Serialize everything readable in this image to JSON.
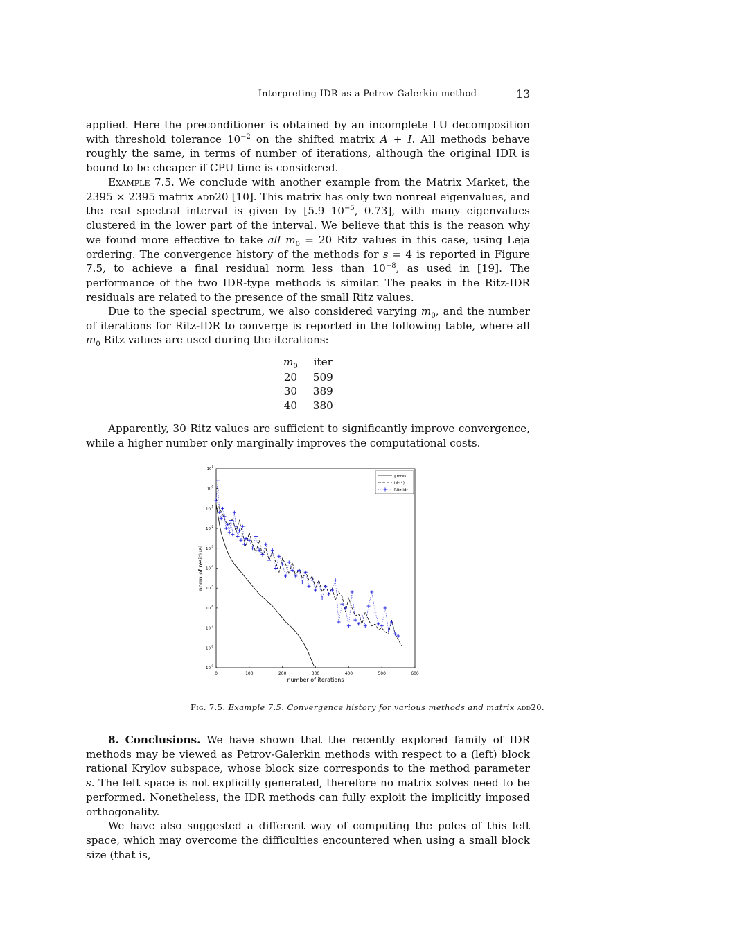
{
  "header": {
    "title": "Interpreting IDR as a Petrov-Galerkin method",
    "page_number": "13"
  },
  "para1": {
    "a": "applied. Here the preconditioner is obtained by an incomplete LU decomposition with threshold tolerance 10",
    "a_sup": "−2",
    "b": " on the shifted matrix ",
    "b_math": "A + I",
    "c": ". All methods behave roughly the same, in terms of number of iterations, although the original IDR is bound to be cheaper if CPU time is considered."
  },
  "para2": {
    "label": "Example 7.5.",
    "a": " We conclude with another example from the Matrix Market, the 2395 × 2395 matrix ",
    "matrix": "add",
    "matrix_num": "20 [10]. This matrix has only two nonreal eigenvalues, and the real spectral interval is given by [5.9 10",
    "sup1": "−5",
    "b": ", 0.73], with many eigenvalues clustered in the lower part of the interval. We believe that this is the reason why we found more effective to take ",
    "all": "all",
    "c": " m",
    "c_sub": "0",
    "d": " = 20 Ritz values in this case, using Leja ordering. The convergence history of the methods for ",
    "s": "s",
    "e": " = 4 is reported in Figure 7.5, to achieve a final residual norm less than 10",
    "sup2": "−8",
    "f": ", as used in [19]. The performance of the two IDR-type methods is similar. The peaks in the Ritz-IDR residuals are related to the presence of the small Ritz values."
  },
  "para3": {
    "a": "Due to the special spectrum, we also considered varying ",
    "m": "m",
    "sub": "0",
    "b": ", and the number of iterations for Ritz-IDR to converge is reported in the following table, where all ",
    "c": " Ritz values are used during the iterations:"
  },
  "table": {
    "headers": [
      "m",
      "iter"
    ],
    "header_sub": "0",
    "rows": [
      [
        "20",
        "509"
      ],
      [
        "30",
        "389"
      ],
      [
        "40",
        "380"
      ]
    ]
  },
  "para4": "Apparently, 30 Ritz values are sufficient to significantly improve convergence, while a higher number only marginally improves the computational costs.",
  "chart_data": {
    "type": "line",
    "xlabel": "number of iterations",
    "ylabel": "norm of residual",
    "xlim": [
      0,
      600
    ],
    "ylim": [
      -9,
      1
    ],
    "y_scale": "log",
    "xticks": [
      "0",
      "100",
      "200",
      "300",
      "400",
      "500",
      "600"
    ],
    "yticks": [
      "10^1",
      "10^0",
      "10^-1",
      "10^-2",
      "10^-3",
      "10^-4",
      "10^-5",
      "10^-6",
      "10^-7",
      "10^-8",
      "10^-9"
    ],
    "legend_position": "top-right",
    "series": [
      {
        "name": "gmres",
        "style": "solid",
        "color": "#000000",
        "x": [
          0,
          5,
          10,
          15,
          20,
          30,
          40,
          55,
          70,
          90,
          110,
          130,
          150,
          170,
          190,
          210,
          230,
          250,
          265,
          275,
          285,
          295
        ],
        "y": [
          -0.8,
          -1.3,
          -1.8,
          -2.2,
          -2.5,
          -3.0,
          -3.4,
          -3.8,
          -4.1,
          -4.5,
          -4.9,
          -5.3,
          -5.6,
          -5.9,
          -6.3,
          -6.7,
          -7.0,
          -7.4,
          -7.8,
          -8.1,
          -8.5,
          -8.9
        ]
      },
      {
        "name": "idr(4)",
        "style": "dashed",
        "color": "#000000",
        "x": [
          0,
          10,
          20,
          30,
          40,
          50,
          60,
          70,
          80,
          90,
          100,
          110,
          120,
          130,
          140,
          150,
          160,
          170,
          180,
          190,
          200,
          210,
          220,
          230,
          240,
          250,
          260,
          270,
          280,
          290,
          300,
          310,
          320,
          330,
          340,
          350,
          360,
          370,
          380,
          390,
          400,
          410,
          420,
          430,
          440,
          450,
          460,
          470,
          480,
          490,
          500,
          510,
          520,
          530,
          540,
          550,
          560
        ],
        "y": [
          -0.5,
          -1.0,
          -1.3,
          -1.7,
          -1.8,
          -1.5,
          -2.2,
          -1.6,
          -2.3,
          -2.9,
          -2.2,
          -2.8,
          -3.2,
          -2.6,
          -3.4,
          -3.0,
          -3.6,
          -3.2,
          -3.7,
          -4.2,
          -3.5,
          -3.8,
          -4.3,
          -3.7,
          -4.4,
          -4.0,
          -4.5,
          -4.2,
          -4.6,
          -4.4,
          -5.0,
          -4.6,
          -5.2,
          -4.8,
          -5.3,
          -5.0,
          -5.6,
          -5.2,
          -5.4,
          -6.2,
          -5.5,
          -6.0,
          -6.4,
          -6.3,
          -6.8,
          -6.2,
          -6.6,
          -6.9,
          -6.8,
          -7.1,
          -7.0,
          -7.2,
          -7.3,
          -6.6,
          -7.3,
          -7.6,
          -7.9
        ]
      },
      {
        "name": "Ritz-idr",
        "style": "dotted-plus",
        "color": "#2020dd",
        "x": [
          0,
          5,
          10,
          15,
          20,
          25,
          30,
          35,
          40,
          45,
          50,
          55,
          60,
          65,
          70,
          75,
          80,
          85,
          90,
          100,
          110,
          120,
          130,
          140,
          150,
          160,
          170,
          180,
          190,
          200,
          210,
          220,
          230,
          240,
          250,
          260,
          270,
          280,
          290,
          300,
          310,
          320,
          330,
          340,
          350,
          360,
          370,
          380,
          390,
          400,
          410,
          420,
          430,
          440,
          450,
          460,
          470,
          480,
          490,
          500,
          510,
          520,
          530,
          540,
          550
        ],
        "y": [
          -0.6,
          0.4,
          -1.2,
          -1.5,
          -1.0,
          -1.4,
          -2.0,
          -1.8,
          -2.2,
          -1.6,
          -2.3,
          -1.2,
          -1.9,
          -2.4,
          -2.1,
          -2.6,
          -1.9,
          -2.8,
          -2.5,
          -2.6,
          -3.0,
          -2.4,
          -3.1,
          -3.3,
          -2.8,
          -3.6,
          -3.1,
          -4.0,
          -3.4,
          -3.8,
          -4.4,
          -3.7,
          -4.1,
          -4.4,
          -4.1,
          -4.7,
          -4.2,
          -4.9,
          -4.5,
          -5.1,
          -4.7,
          -5.5,
          -4.9,
          -5.3,
          -5.1,
          -4.6,
          -6.7,
          -5.8,
          -6.0,
          -6.9,
          -5.2,
          -6.6,
          -6.8,
          -6.3,
          -6.9,
          -5.9,
          -5.2,
          -6.2,
          -6.8,
          -6.9,
          -6.0,
          -7.1,
          -6.7,
          -7.3,
          -7.4
        ]
      }
    ]
  },
  "caption": {
    "label": "Fig. 7.5.",
    "text": " Example 7.5. Convergence history for various methods and matrix ",
    "matrix": "add20."
  },
  "section": {
    "number": "8.",
    "title": "Conclusions.",
    "text": " We have shown that the recently explored family of IDR methods may be viewed as Petrov-Galerkin methods with respect to a (left) block rational Krylov subspace, whose block size corresponds to the method parameter ",
    "s": "s",
    "text2": ". The left space is not explicitly generated, therefore no matrix solves need to be performed. Nonetheless, the IDR methods can fully exploit the implicitly imposed orthogonality."
  },
  "para_last": "We have also suggested a different way of computing the poles of this left space, which may overcome the difficulties encountered when using a small block size (that is,"
}
